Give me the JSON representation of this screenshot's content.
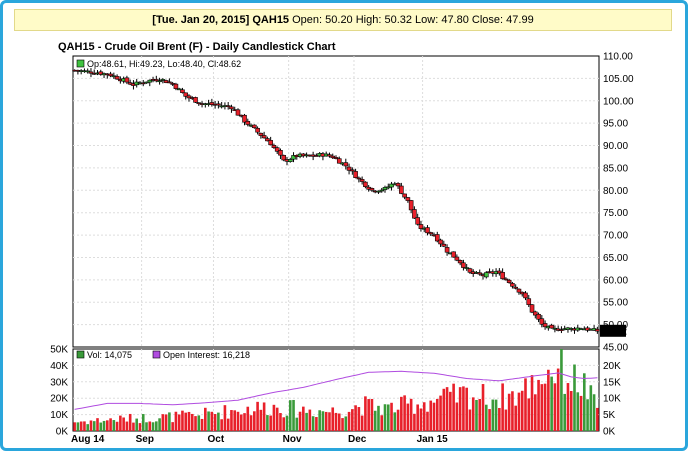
{
  "banner": {
    "date": "[Tue. Jan 20, 2015]",
    "symbol": "QAH15",
    "rest": "Open: 50.20 High: 50.32 Low: 47.80 Close: 47.99"
  },
  "chart_data": [
    {
      "type": "candlestick",
      "title": "QAH15 - Crude Oil Brent (F) - Daily Candlestick Chart",
      "legend_text": "Op:48.61, Hi:49.23, Lo:48.40, Cl:48.62",
      "last_price_label": "48.62",
      "y_ticks": [
        "110.00",
        "105.00",
        "100.00",
        "95.00",
        "90.00",
        "85.00",
        "80.00",
        "75.00",
        "70.00",
        "65.00",
        "60.00",
        "55.00",
        "50.00",
        "45.00"
      ],
      "ylim": [
        45,
        110
      ],
      "x_labels": [
        "Aug 14",
        "Sep",
        "Oct",
        "Nov",
        "Dec",
        "Jan 15"
      ],
      "grid": true,
      "colors": {
        "up": "#3fc23f",
        "down": "#e8202a"
      },
      "price_path": [
        [
          0,
          106.8
        ],
        [
          7,
          106.3
        ],
        [
          11,
          105.8
        ],
        [
          18,
          103.6
        ],
        [
          22,
          104.4
        ],
        [
          26,
          104.9
        ],
        [
          30,
          103.8
        ],
        [
          34,
          101.0
        ],
        [
          39,
          99.4
        ],
        [
          44,
          99.0
        ],
        [
          48,
          98.6
        ],
        [
          52,
          95.5
        ],
        [
          56,
          93.0
        ],
        [
          60,
          90.5
        ],
        [
          64,
          86.5
        ],
        [
          68,
          87.7
        ],
        [
          72,
          87.6
        ],
        [
          76,
          88.0
        ],
        [
          79,
          87.5
        ],
        [
          83,
          85.5
        ],
        [
          87,
          82.5
        ],
        [
          91,
          80.0
        ],
        [
          95,
          80.3
        ],
        [
          98,
          81.8
        ],
        [
          102,
          77.5
        ],
        [
          105,
          72.0
        ],
        [
          110,
          70.0
        ],
        [
          114,
          66.5
        ],
        [
          118,
          64.0
        ],
        [
          121,
          61.5
        ],
        [
          125,
          61.0
        ],
        [
          129,
          61.8
        ],
        [
          133,
          59.5
        ],
        [
          137,
          57.0
        ],
        [
          140,
          53.0
        ],
        [
          143,
          50.0
        ],
        [
          146,
          48.8
        ],
        [
          149,
          49.2
        ],
        [
          152,
          49.0
        ],
        [
          155,
          49.3
        ],
        [
          158,
          48.8
        ],
        [
          160,
          48.62
        ]
      ]
    },
    {
      "type": "bar+line",
      "series": [
        {
          "name": "Vol",
          "legend_text": "Vol: 14,075",
          "type": "bar"
        },
        {
          "name": "Open Interest",
          "legend_text": "Open Interest: 16,218",
          "type": "line"
        }
      ],
      "y_left_ticks": [
        "50K",
        "40K",
        "30K",
        "20K",
        "10K",
        "0K"
      ],
      "ylim_left": [
        0,
        50000
      ],
      "y_right_ticks": [
        "20K",
        "15K",
        "10K",
        "5K",
        "0K"
      ],
      "ylim_right": [
        0,
        25000
      ],
      "colors": {
        "open_interest_line": "#b04ce0"
      },
      "volume_path": [
        [
          0,
          6000
        ],
        [
          15,
          8000
        ],
        [
          25,
          9000
        ],
        [
          36,
          10000
        ],
        [
          50,
          14000
        ],
        [
          60,
          16000
        ],
        [
          70,
          14000
        ],
        [
          80,
          13000
        ],
        [
          88,
          17000
        ],
        [
          96,
          15000
        ],
        [
          104,
          18000
        ],
        [
          112,
          21000
        ],
        [
          120,
          24000
        ],
        [
          128,
          22000
        ],
        [
          136,
          24000
        ],
        [
          144,
          38000
        ],
        [
          148,
          42000
        ],
        [
          152,
          34000
        ],
        [
          156,
          30000
        ],
        [
          160,
          14075
        ]
      ],
      "open_interest_path": [
        [
          0,
          6600
        ],
        [
          10,
          8400
        ],
        [
          20,
          8400
        ],
        [
          30,
          8000
        ],
        [
          40,
          8600
        ],
        [
          50,
          9400
        ],
        [
          60,
          11600
        ],
        [
          70,
          13300
        ],
        [
          80,
          15700
        ],
        [
          90,
          17900
        ],
        [
          100,
          18200
        ],
        [
          110,
          17600
        ],
        [
          120,
          16000
        ],
        [
          130,
          15300
        ],
        [
          140,
          16700
        ],
        [
          148,
          17700
        ],
        [
          152,
          16500
        ],
        [
          156,
          16000
        ],
        [
          160,
          16218
        ]
      ]
    }
  ]
}
